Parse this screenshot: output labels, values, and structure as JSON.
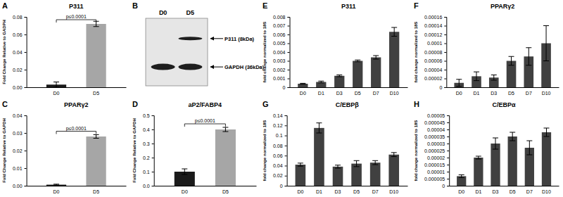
{
  "chart_data": [
    {
      "panel": "A",
      "type": "bar",
      "title": "P311",
      "ylabel": "Fold Change Relative to GADPH",
      "categories": [
        "D0",
        "D5"
      ],
      "values": [
        0.003,
        0.072
      ],
      "errors": [
        0.003,
        0.003
      ],
      "colors": [
        "#1a1a1a",
        "#a6a6a6"
      ],
      "ylim": [
        0,
        0.08
      ],
      "yticks": [
        {
          "value": 0,
          "label": "0.00"
        },
        0.02,
        0.04,
        0.06,
        0.08
      ],
      "annotation": "p≤0.0001"
    },
    {
      "panel": "B",
      "type": "blot",
      "categories": [
        "D0",
        "D5"
      ],
      "rows": [
        {
          "label": "P311 (8kDa)",
          "bands": [
            "D5"
          ]
        },
        {
          "label": "GAPDH (36kDa)",
          "bands": [
            "D0",
            "D5"
          ]
        }
      ]
    },
    {
      "panel": "C",
      "type": "bar",
      "title": "PPARγ2",
      "ylabel": "Fold Change Relative to GAPDH",
      "categories": [
        "D0",
        "D5"
      ],
      "values": [
        0.0006,
        0.028
      ],
      "errors": [
        0.0003,
        0.001
      ],
      "colors": [
        "#1a1a1a",
        "#a6a6a6"
      ],
      "ylim": [
        0,
        0.04
      ],
      "yticks": [
        {
          "value": 0,
          "label": "0.00"
        },
        0.01,
        0.02,
        0.03,
        0.04
      ],
      "annotation": "p≤0.0001"
    },
    {
      "panel": "D",
      "type": "bar",
      "title": "aP2/FABP4",
      "ylabel": "Fold Change Relative to GAPDH",
      "categories": [
        "D0",
        "D5"
      ],
      "values": [
        0.1,
        0.4
      ],
      "errors": [
        0.02,
        0.015
      ],
      "colors": [
        "#1a1a1a",
        "#a6a6a6"
      ],
      "ylim": [
        0,
        0.5
      ],
      "yticks": [
        {
          "value": 0,
          "label": "0.0"
        },
        0.1,
        0.2,
        0.3,
        0.4,
        0.5
      ],
      "annotation": "p≤0.0001"
    },
    {
      "panel": "E",
      "type": "bar",
      "title": "P311",
      "ylabel": "fold change normalized to 18S",
      "categories": [
        "D0",
        "D1",
        "D3",
        "D5",
        "D7",
        "D10"
      ],
      "values": [
        0.0004,
        0.0006,
        0.0013,
        0.003,
        0.0034,
        0.0063
      ],
      "errors": [
        5e-05,
        0.0001,
        0.0001,
        0.0001,
        0.0002,
        0.0005
      ],
      "color": "#404040",
      "ylim": [
        0,
        0.008
      ],
      "yticks": [
        0,
        0.001,
        0.002,
        0.003,
        0.004,
        0.005,
        0.006,
        0.007,
        0.008
      ]
    },
    {
      "panel": "F",
      "type": "bar",
      "title": "PPARγ2",
      "ylabel": "fold change normalized to 18S",
      "categories": [
        "D0",
        "D1",
        "D3",
        "D5",
        "D7",
        "D10"
      ],
      "values": [
        1e-05,
        2.5e-05,
        2.2e-05,
        6e-05,
        7e-05,
        0.0001
      ],
      "errors": [
        8e-06,
        1e-05,
        6e-06,
        1e-05,
        2e-05,
        4e-05
      ],
      "color": "#404040",
      "ylim": [
        0,
        0.00016
      ],
      "yticks": [
        0,
        2e-05,
        4e-05,
        6e-05,
        8e-05,
        0.0001,
        0.00012,
        0.00014,
        0.00016
      ]
    },
    {
      "panel": "G",
      "type": "bar",
      "title": "C/EBPβ",
      "ylabel": "fold change normalized to 18S",
      "categories": [
        "D0",
        "D1",
        "D3",
        "D5",
        "D7",
        "D10"
      ],
      "values": [
        0.042,
        0.115,
        0.038,
        0.044,
        0.046,
        0.062
      ],
      "errors": [
        0.003,
        0.01,
        0.003,
        0.006,
        0.004,
        0.004
      ],
      "color": "#404040",
      "ylim": [
        0,
        0.14
      ],
      "yticks": [
        0,
        0.02,
        0.04,
        0.06,
        0.08,
        0.1,
        0.12,
        0.14
      ]
    },
    {
      "panel": "H",
      "type": "bar",
      "title": "C/EBPα",
      "ylabel": "fold change normalized to 18S",
      "categories": [
        "D0",
        "D1",
        "D3",
        "D5",
        "D7",
        "D10"
      ],
      "values": [
        6.8e-06,
        2e-05,
        3e-05,
        3.5e-05,
        2.7e-05,
        3.8e-05
      ],
      "errors": [
        1e-06,
        1e-06,
        4e-06,
        3e-06,
        5e-06,
        3e-06
      ],
      "color": "#404040",
      "ylim": [
        0,
        5e-05
      ],
      "yticks": [
        0,
        5e-06,
        1e-05,
        1.5e-05,
        2e-05,
        2.5e-05,
        3e-05,
        3.5e-05,
        4e-05,
        4.5e-05,
        5e-05
      ]
    }
  ]
}
